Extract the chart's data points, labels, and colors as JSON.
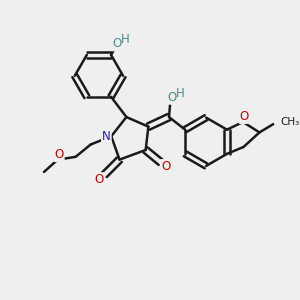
{
  "bg_color": "#efefef",
  "bond_color": "#1a1a1a",
  "bond_width": 1.8,
  "N_color": "#1a1acc",
  "O_color": "#cc0000",
  "OH_color": "#4a8a8a",
  "font_size": 8.5,
  "fig_size": [
    3.0,
    3.0
  ],
  "dpi": 100,
  "xlim": [
    0,
    10
  ],
  "ylim": [
    0,
    10
  ]
}
